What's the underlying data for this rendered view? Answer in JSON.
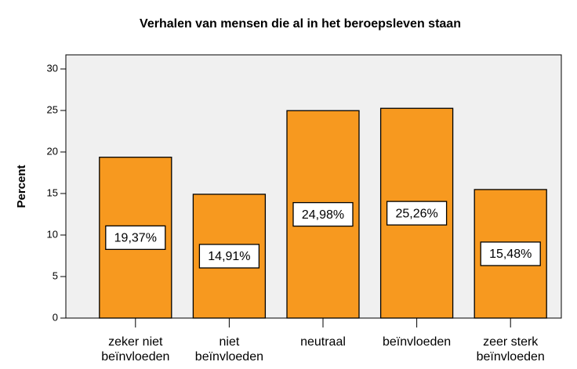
{
  "chart_data": {
    "type": "bar",
    "title": "Verhalen van mensen die al in het beroepsleven staan",
    "y_label": "Percent",
    "categories": [
      "zeker niet beïnvloeden",
      "niet beïnvloeden",
      "neutraal",
      "beïnvloeden",
      "zeer sterk beïnvloeden"
    ],
    "values": [
      19.37,
      14.91,
      24.98,
      25.26,
      15.48
    ],
    "value_labels": [
      "19,37%",
      "14,91%",
      "24,98%",
      "25,26%",
      "15,48%"
    ],
    "color": "#f7991f",
    "ylim": [
      0,
      31.7
    ],
    "yticks": [
      0,
      5,
      10,
      15,
      20,
      25,
      30
    ]
  }
}
